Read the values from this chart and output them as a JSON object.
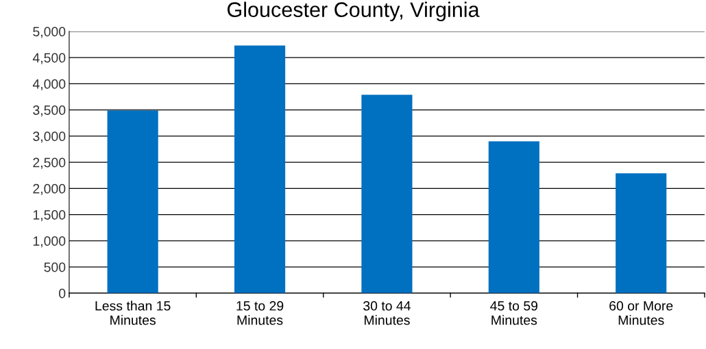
{
  "chart_data": {
    "type": "bar",
    "title": "Gloucester County, Virginia",
    "categories": [
      "Less than 15\nMinutes",
      "15 to 29\nMinutes",
      "30 to 44\nMinutes",
      "45 to 59\nMinutes",
      "60 or More\nMinutes"
    ],
    "values": [
      3490,
      4730,
      3790,
      2900,
      2290
    ],
    "color": "#0070c0",
    "ylim": [
      0,
      5000
    ],
    "yticks": [
      {
        "value": 0,
        "label": "0"
      },
      {
        "value": 500,
        "label": "500"
      },
      {
        "value": 1000,
        "label": "1,000"
      },
      {
        "value": 1500,
        "label": "1,500"
      },
      {
        "value": 2000,
        "label": "2,000"
      },
      {
        "value": 2500,
        "label": "2,500"
      },
      {
        "value": 3000,
        "label": "3,000"
      },
      {
        "value": 3500,
        "label": "3,500"
      },
      {
        "value": 4000,
        "label": "4,000"
      },
      {
        "value": 4500,
        "label": "4,500"
      },
      {
        "value": 5000,
        "label": "5,000"
      }
    ],
    "grid": "y",
    "legend": false
  }
}
